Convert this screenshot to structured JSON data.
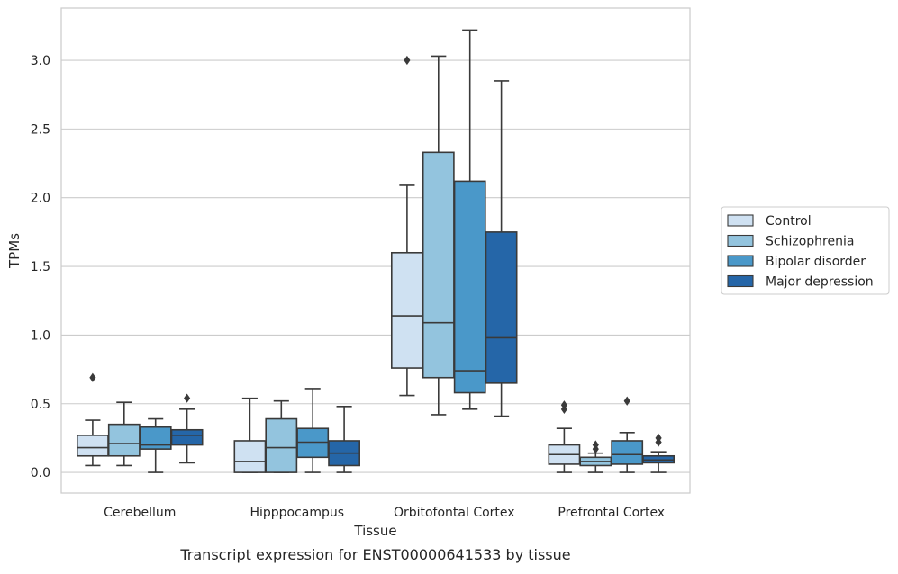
{
  "chart_data": {
    "type": "box",
    "caption": "Transcript expression for ENST00000641533 by tissue",
    "xlabel": "Tissue",
    "ylabel": "TPMs",
    "ylim": [
      -0.15,
      3.38
    ],
    "yticks": [
      0.0,
      0.5,
      1.0,
      1.5,
      2.0,
      2.5,
      3.0
    ],
    "ytick_labels": [
      "0.0",
      "0.5",
      "1.0",
      "1.5",
      "2.0",
      "2.5",
      "3.0"
    ],
    "grid": "horizontal",
    "legend_position": "right",
    "categories": [
      "Cerebellum",
      "Hipppocampus",
      "Orbitofontal Cortex",
      "Prefrontal Cortex"
    ],
    "series": [
      {
        "name": "Control",
        "color": "#cfe1f2",
        "boxes": [
          {
            "whisker_low": 0.05,
            "q1": 0.12,
            "median": 0.18,
            "q3": 0.27,
            "whisker_high": 0.38,
            "outliers": [
              0.69
            ]
          },
          {
            "whisker_low": 0.0,
            "q1": 0.0,
            "median": 0.08,
            "q3": 0.23,
            "whisker_high": 0.54,
            "outliers": []
          },
          {
            "whisker_low": 0.56,
            "q1": 0.76,
            "median": 1.14,
            "q3": 1.6,
            "whisker_high": 2.09,
            "outliers": [
              3.0
            ]
          },
          {
            "whisker_low": 0.0,
            "q1": 0.06,
            "median": 0.13,
            "q3": 0.2,
            "whisker_high": 0.32,
            "outliers": [
              0.46,
              0.49
            ]
          }
        ]
      },
      {
        "name": "Schizophrenia",
        "color": "#93c4de",
        "boxes": [
          {
            "whisker_low": 0.05,
            "q1": 0.12,
            "median": 0.21,
            "q3": 0.35,
            "whisker_high": 0.51,
            "outliers": []
          },
          {
            "whisker_low": 0.0,
            "q1": 0.0,
            "median": 0.18,
            "q3": 0.39,
            "whisker_high": 0.52,
            "outliers": []
          },
          {
            "whisker_low": 0.42,
            "q1": 0.69,
            "median": 1.09,
            "q3": 2.33,
            "whisker_high": 3.03,
            "outliers": []
          },
          {
            "whisker_low": 0.0,
            "q1": 0.05,
            "median": 0.08,
            "q3": 0.11,
            "whisker_high": 0.14,
            "outliers": [
              0.17,
              0.2
            ]
          }
        ]
      },
      {
        "name": "Bipolar disorder",
        "color": "#4a98c9",
        "boxes": [
          {
            "whisker_low": 0.0,
            "q1": 0.17,
            "median": 0.2,
            "q3": 0.33,
            "whisker_high": 0.39,
            "outliers": []
          },
          {
            "whisker_low": 0.0,
            "q1": 0.11,
            "median": 0.22,
            "q3": 0.32,
            "whisker_high": 0.61,
            "outliers": []
          },
          {
            "whisker_low": 0.46,
            "q1": 0.58,
            "median": 0.74,
            "q3": 2.12,
            "whisker_high": 3.22,
            "outliers": []
          },
          {
            "whisker_low": 0.0,
            "q1": 0.06,
            "median": 0.13,
            "q3": 0.23,
            "whisker_high": 0.29,
            "outliers": [
              0.52
            ]
          }
        ]
      },
      {
        "name": "Major depression",
        "color": "#2566a8",
        "boxes": [
          {
            "whisker_low": 0.07,
            "q1": 0.2,
            "median": 0.27,
            "q3": 0.31,
            "whisker_high": 0.46,
            "outliers": [
              0.54
            ]
          },
          {
            "whisker_low": 0.0,
            "q1": 0.05,
            "median": 0.14,
            "q3": 0.23,
            "whisker_high": 0.48,
            "outliers": []
          },
          {
            "whisker_low": 0.41,
            "q1": 0.65,
            "median": 0.98,
            "q3": 1.75,
            "whisker_high": 2.85,
            "outliers": []
          },
          {
            "whisker_low": 0.0,
            "q1": 0.07,
            "median": 0.09,
            "q3": 0.12,
            "whisker_high": 0.15,
            "outliers": [
              0.22,
              0.25
            ]
          }
        ]
      }
    ]
  }
}
